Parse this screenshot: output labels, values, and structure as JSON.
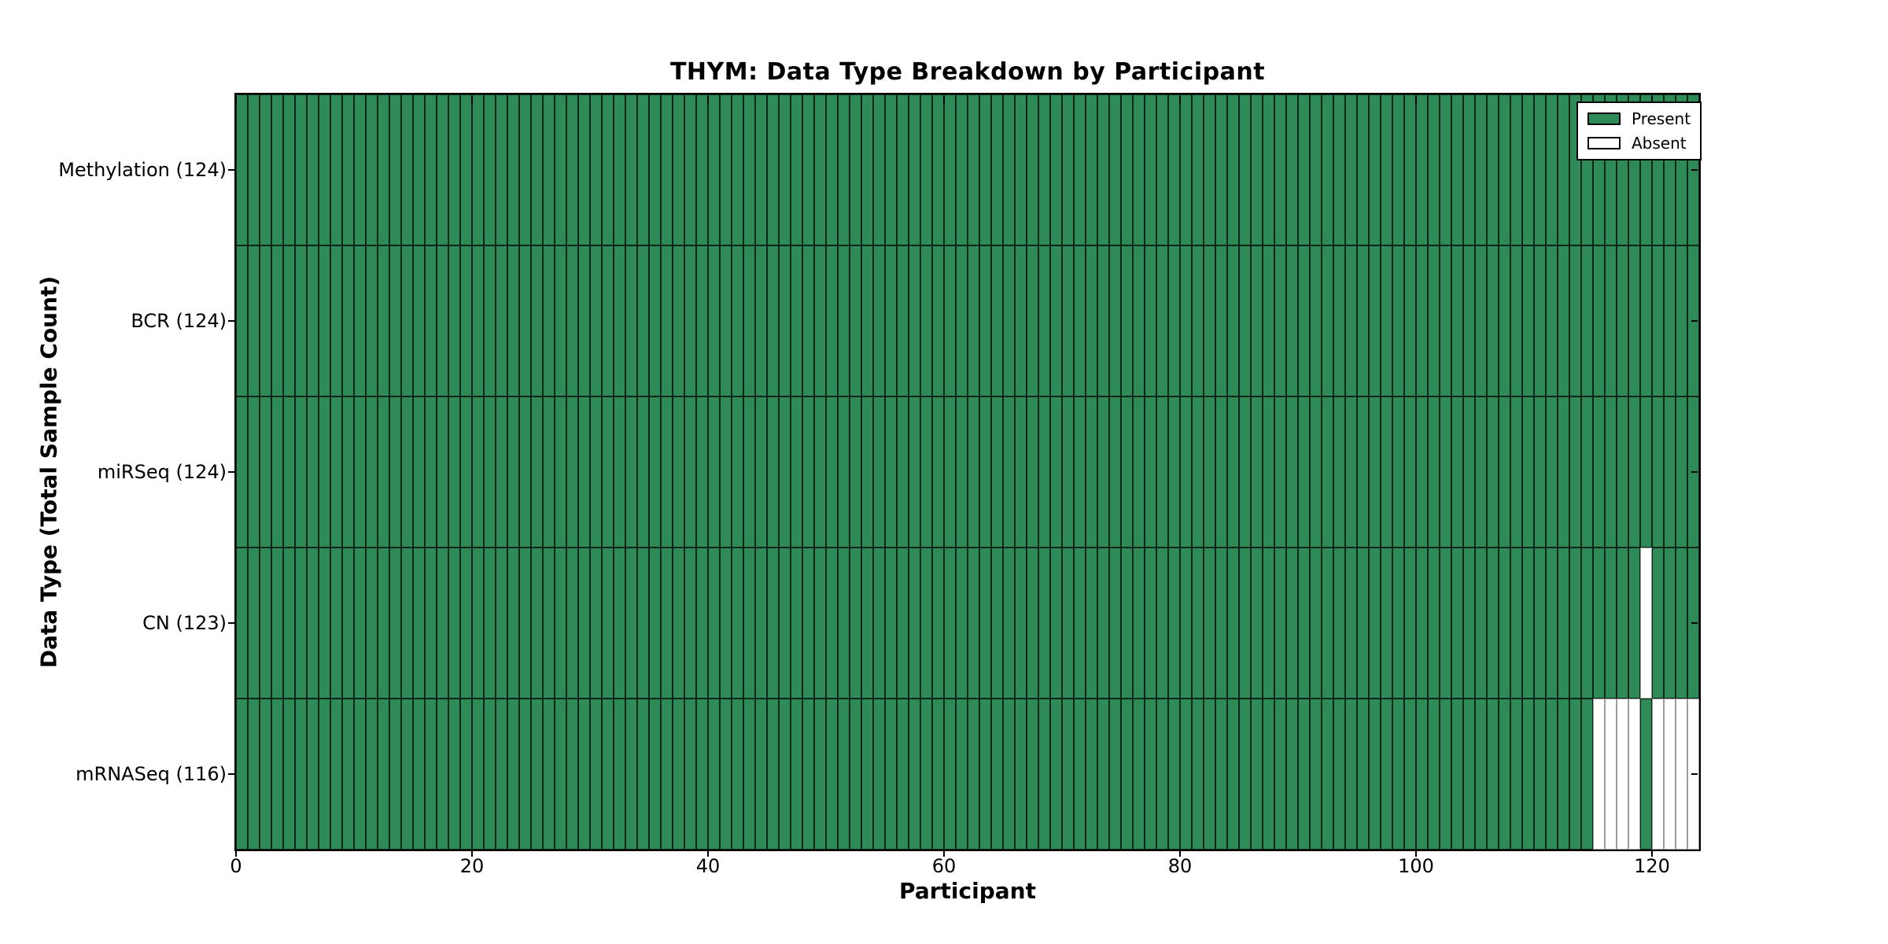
{
  "figure": {
    "title": "THYM: Data Type Breakdown by Participant"
  },
  "chart_data": {
    "type": "heatmap",
    "title": "THYM: Data Type Breakdown by Participant",
    "xlabel": "Participant",
    "ylabel": "Data Type (Total Sample Count)",
    "x_ticks": [
      0,
      20,
      40,
      60,
      80,
      100,
      120
    ],
    "x_range": [
      0,
      124
    ],
    "n_participants": 124,
    "grid": false,
    "legend_position": "upper right",
    "colors": {
      "present": "#2E8B57",
      "absent": "#FFFFFF"
    },
    "legend": {
      "entries": [
        {
          "label": "Present",
          "color": "#2E8B57"
        },
        {
          "label": "Absent",
          "color": "#FFFFFF"
        }
      ]
    },
    "rows": [
      {
        "label": "Methylation (124)",
        "data_type": "Methylation",
        "total_sample_count": 124,
        "absent_participants": []
      },
      {
        "label": "BCR (124)",
        "data_type": "BCR",
        "total_sample_count": 124,
        "absent_participants": []
      },
      {
        "label": "miRSeq (124)",
        "data_type": "miRSeq",
        "total_sample_count": 124,
        "absent_participants": []
      },
      {
        "label": "CN (123)",
        "data_type": "CN",
        "total_sample_count": 123,
        "absent_participants": [
          119
        ]
      },
      {
        "label": "mRNASeq (116)",
        "data_type": "mRNASeq",
        "total_sample_count": 116,
        "absent_participants": [
          115,
          116,
          117,
          118,
          120,
          121,
          122,
          123
        ]
      }
    ]
  }
}
